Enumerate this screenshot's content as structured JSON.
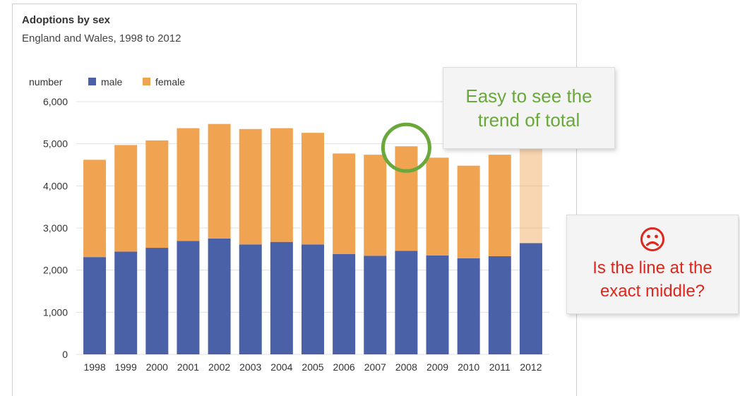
{
  "chart": {
    "title": "Adoptions by sex",
    "subtitle": "England and Wales, 1998 to 2012"
  },
  "callouts": {
    "trend": {
      "lines": [
        "Easy to see the",
        "trend of total"
      ],
      "color": "#6aa83b"
    },
    "middle": {
      "icon": "sad-face-icon",
      "lines": [
        "Is the line at the",
        "exact middle?"
      ],
      "color": "#e0261c"
    }
  },
  "colors": {
    "male": "#4a61a8",
    "female": "#f0a452",
    "gridline": "#e0e0e0",
    "highlight_circle": "#6aa83b"
  },
  "chart_data": {
    "type": "bar",
    "stacked": true,
    "title": "Adoptions by sex",
    "subtitle": "England and Wales, 1998 to 2012",
    "ylabel": "number",
    "xlabel": "",
    "ylim": [
      0,
      6000
    ],
    "yticks": [
      0,
      1000,
      2000,
      3000,
      4000,
      5000,
      6000
    ],
    "ytick_labels": [
      "0",
      "1,000",
      "2,000",
      "3,000",
      "4,000",
      "5,000",
      "6,000"
    ],
    "grid": true,
    "legend": "top-left",
    "categories": [
      "1998",
      "1999",
      "2000",
      "2001",
      "2002",
      "2003",
      "2004",
      "2005",
      "2006",
      "2007",
      "2008",
      "2009",
      "2010",
      "2011",
      "2012"
    ],
    "series": [
      {
        "name": "male",
        "values": [
          2310,
          2440,
          2530,
          2690,
          2750,
          2610,
          2670,
          2610,
          2380,
          2340,
          2460,
          2350,
          2280,
          2330,
          2640
        ]
      },
      {
        "name": "female",
        "values": [
          2310,
          2530,
          2550,
          2680,
          2720,
          2740,
          2700,
          2650,
          2390,
          2400,
          2480,
          2320,
          2200,
          2410,
          2560
        ]
      }
    ],
    "highlighted_category": "2008",
    "faded_category": "2012"
  }
}
